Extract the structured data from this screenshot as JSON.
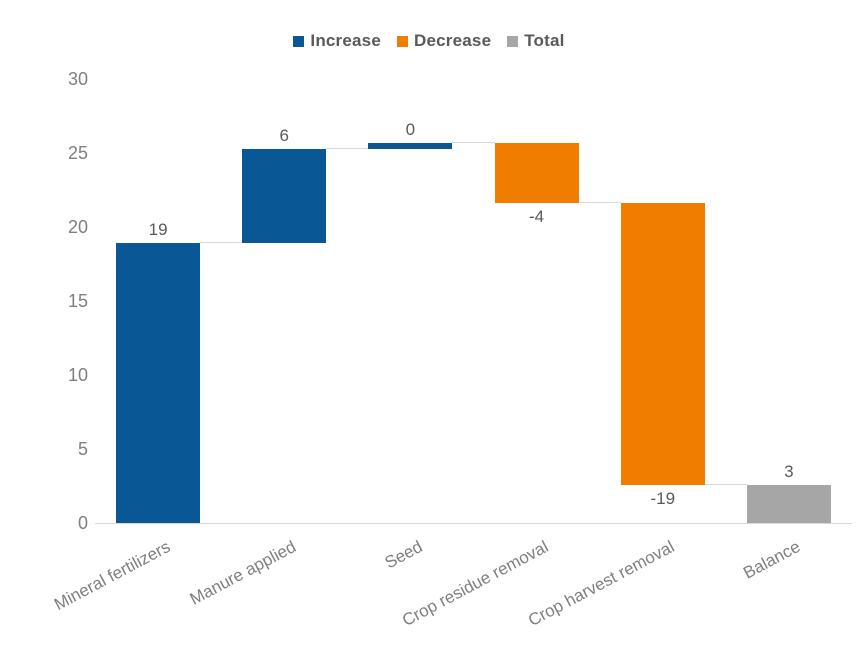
{
  "chart_data": {
    "type": "waterfall",
    "title": "",
    "categories": [
      "Mineral fertilizers",
      "Manure applied",
      "Seed",
      "Crop residue removal",
      "Crop harvest removal",
      "Balance"
    ],
    "values": [
      19,
      6,
      0,
      -4,
      -19,
      3
    ],
    "bars": [
      {
        "category": "Mineral fertilizers",
        "label": "19",
        "role": "increase",
        "start": 0,
        "end": 18.9,
        "label_side": "above"
      },
      {
        "category": "Manure applied",
        "label": "6",
        "role": "increase",
        "start": 18.9,
        "end": 25.3,
        "label_side": "above"
      },
      {
        "category": "Seed",
        "label": "0",
        "role": "increase",
        "start": 25.3,
        "end": 25.67,
        "label_side": "above"
      },
      {
        "category": "Crop residue removal",
        "label": "-4",
        "role": "decrease",
        "start": 25.67,
        "end": 21.6,
        "label_side": "below"
      },
      {
        "category": "Crop harvest removal",
        "label": "-19",
        "role": "decrease",
        "start": 21.6,
        "end": 2.6,
        "label_side": "below"
      },
      {
        "category": "Balance",
        "label": "3",
        "role": "total",
        "start": 0,
        "end": 2.55,
        "label_side": "above"
      }
    ],
    "y_axis": {
      "ticks": [
        "0",
        "5",
        "10",
        "15",
        "20",
        "25",
        "30"
      ],
      "lim": [
        0,
        30
      ]
    },
    "legend": [
      {
        "label": "Increase",
        "role": "increase"
      },
      {
        "label": "Decrease",
        "role": "decrease"
      },
      {
        "label": "Total",
        "role": "total"
      }
    ],
    "legend_position": "top",
    "grid": false,
    "colors": {
      "increase": "#0A5796",
      "decrease": "#EF7D00",
      "total": "#A6A6A6",
      "connector": "#D9D9D9",
      "axis_line": "#D9D9D9",
      "tick_label": "#7F7F7F",
      "category_label": "#7F7F7F",
      "data_label": "#595959",
      "legend_text": "#595959"
    }
  }
}
